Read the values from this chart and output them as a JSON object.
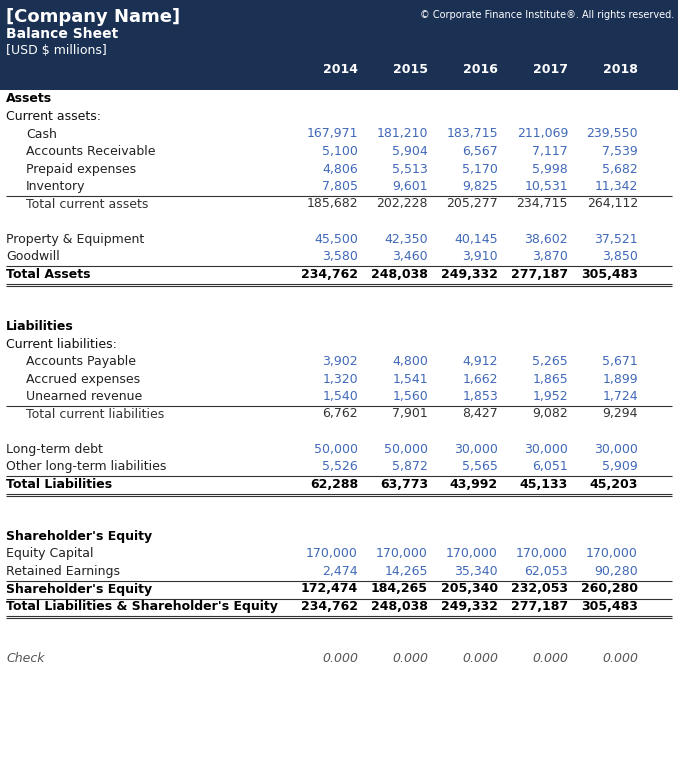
{
  "header_bg": "#1b3154",
  "header_text_color": "#ffffff",
  "company_name": "[Company Name]",
  "copyright": "© Corporate Finance Institute®. All rights reserved.",
  "sheet_title": "Balance Sheet",
  "currency": "[USD $ millions]",
  "years": [
    "2014",
    "2015",
    "2016",
    "2017",
    "2018"
  ],
  "blue_color": "#4169b8",
  "rows": [
    {
      "label": "Assets",
      "type": "section_header",
      "indent": 0,
      "values": [
        "",
        "",
        "",
        "",
        ""
      ]
    },
    {
      "label": "Current assets:",
      "type": "subheader",
      "indent": 0,
      "values": [
        "",
        "",
        "",
        "",
        ""
      ]
    },
    {
      "label": "Cash",
      "type": "data_blue",
      "indent": 1,
      "values": [
        "167,971",
        "181,210",
        "183,715",
        "211,069",
        "239,550"
      ]
    },
    {
      "label": "Accounts Receivable",
      "type": "data_blue",
      "indent": 1,
      "values": [
        "5,100",
        "5,904",
        "6,567",
        "7,117",
        "7,539"
      ]
    },
    {
      "label": "Prepaid expenses",
      "type": "data_blue",
      "indent": 1,
      "values": [
        "4,806",
        "5,513",
        "5,170",
        "5,998",
        "5,682"
      ]
    },
    {
      "label": "Inventory",
      "type": "data_blue",
      "indent": 1,
      "values": [
        "7,805",
        "9,601",
        "9,825",
        "10,531",
        "11,342"
      ]
    },
    {
      "label": "Total current assets",
      "type": "subtotal",
      "indent": 1,
      "values": [
        "185,682",
        "202,228",
        "205,277",
        "234,715",
        "264,112"
      ],
      "top_border": true
    },
    {
      "label": "",
      "type": "spacer",
      "indent": 0,
      "values": [
        "",
        "",
        "",
        "",
        ""
      ]
    },
    {
      "label": "Property & Equipment",
      "type": "data_blue",
      "indent": 0,
      "values": [
        "45,500",
        "42,350",
        "40,145",
        "38,602",
        "37,521"
      ]
    },
    {
      "label": "Goodwill",
      "type": "data_blue",
      "indent": 0,
      "values": [
        "3,580",
        "3,460",
        "3,910",
        "3,870",
        "3,850"
      ]
    },
    {
      "label": "Total Assets",
      "type": "total",
      "indent": 0,
      "values": [
        "234,762",
        "248,038",
        "249,332",
        "277,187",
        "305,483"
      ],
      "top_border": true,
      "bottom_double": true
    },
    {
      "label": "",
      "type": "spacer",
      "indent": 0,
      "values": [
        "",
        "",
        "",
        "",
        ""
      ]
    },
    {
      "label": "",
      "type": "spacer",
      "indent": 0,
      "values": [
        "",
        "",
        "",
        "",
        ""
      ]
    },
    {
      "label": "Liabilities",
      "type": "section_header",
      "indent": 0,
      "values": [
        "",
        "",
        "",
        "",
        ""
      ]
    },
    {
      "label": "Current liabilities:",
      "type": "subheader",
      "indent": 0,
      "values": [
        "",
        "",
        "",
        "",
        ""
      ]
    },
    {
      "label": "Accounts Payable",
      "type": "data_blue",
      "indent": 1,
      "values": [
        "3,902",
        "4,800",
        "4,912",
        "5,265",
        "5,671"
      ]
    },
    {
      "label": "Accrued expenses",
      "type": "data_blue",
      "indent": 1,
      "values": [
        "1,320",
        "1,541",
        "1,662",
        "1,865",
        "1,899"
      ]
    },
    {
      "label": "Unearned revenue",
      "type": "data_blue",
      "indent": 1,
      "values": [
        "1,540",
        "1,560",
        "1,853",
        "1,952",
        "1,724"
      ]
    },
    {
      "label": "Total current liabilities",
      "type": "subtotal",
      "indent": 1,
      "values": [
        "6,762",
        "7,901",
        "8,427",
        "9,082",
        "9,294"
      ],
      "top_border": true
    },
    {
      "label": "",
      "type": "spacer",
      "indent": 0,
      "values": [
        "",
        "",
        "",
        "",
        ""
      ]
    },
    {
      "label": "Long-term debt",
      "type": "data_blue",
      "indent": 0,
      "values": [
        "50,000",
        "50,000",
        "30,000",
        "30,000",
        "30,000"
      ]
    },
    {
      "label": "Other long-term liabilities",
      "type": "data_blue",
      "indent": 0,
      "values": [
        "5,526",
        "5,872",
        "5,565",
        "6,051",
        "5,909"
      ]
    },
    {
      "label": "Total Liabilities",
      "type": "total",
      "indent": 0,
      "values": [
        "62,288",
        "63,773",
        "43,992",
        "45,133",
        "45,203"
      ],
      "top_border": true,
      "bottom_double": true
    },
    {
      "label": "",
      "type": "spacer",
      "indent": 0,
      "values": [
        "",
        "",
        "",
        "",
        ""
      ]
    },
    {
      "label": "",
      "type": "spacer",
      "indent": 0,
      "values": [
        "",
        "",
        "",
        "",
        ""
      ]
    },
    {
      "label": "Shareholder's Equity",
      "type": "section_header",
      "indent": 0,
      "values": [
        "",
        "",
        "",
        "",
        ""
      ]
    },
    {
      "label": "Equity Capital",
      "type": "data_blue",
      "indent": 0,
      "values": [
        "170,000",
        "170,000",
        "170,000",
        "170,000",
        "170,000"
      ]
    },
    {
      "label": "Retained Earnings",
      "type": "data_blue",
      "indent": 0,
      "values": [
        "2,474",
        "14,265",
        "35,340",
        "62,053",
        "90,280"
      ]
    },
    {
      "label": "Shareholder's Equity",
      "type": "total",
      "indent": 0,
      "values": [
        "172,474",
        "184,265",
        "205,340",
        "232,053",
        "260,280"
      ],
      "top_border": true
    },
    {
      "label": "Total Liabilities & Shareholder's Equity",
      "type": "total",
      "indent": 0,
      "values": [
        "234,762",
        "248,038",
        "249,332",
        "277,187",
        "305,483"
      ],
      "top_border": true,
      "bottom_double": true
    },
    {
      "label": "",
      "type": "spacer",
      "indent": 0,
      "values": [
        "",
        "",
        "",
        "",
        ""
      ]
    },
    {
      "label": "",
      "type": "spacer",
      "indent": 0,
      "values": [
        "",
        "",
        "",
        "",
        ""
      ]
    },
    {
      "label": "Check",
      "type": "check",
      "indent": 0,
      "values": [
        "0.000",
        "0.000",
        "0.000",
        "0.000",
        "0.000"
      ]
    }
  ]
}
